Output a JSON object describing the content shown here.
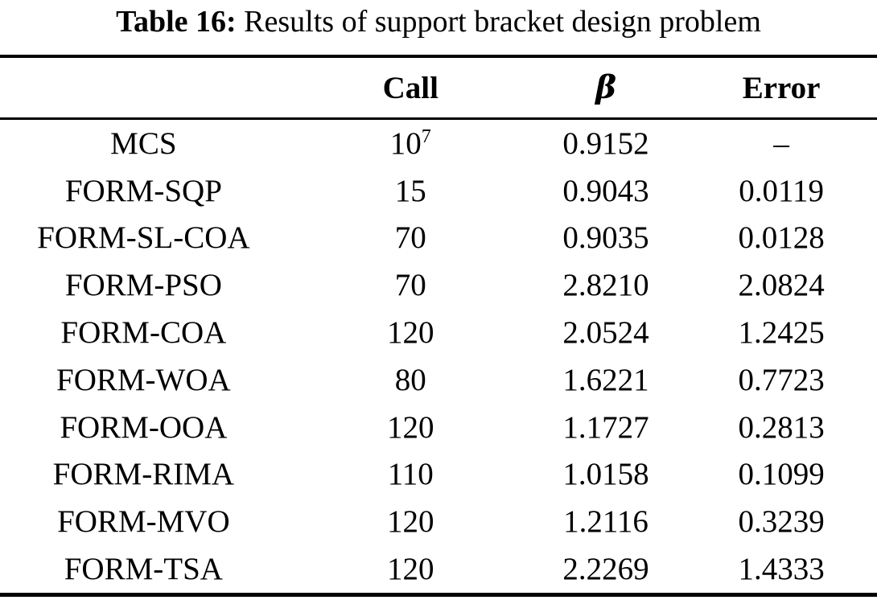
{
  "caption": {
    "label": "Table 16:",
    "text": "Results of support bracket design problem"
  },
  "table": {
    "headers": {
      "method": "",
      "call": "Call",
      "beta": "β",
      "error": "Error"
    },
    "rows": [
      {
        "method": "MCS",
        "call": "10",
        "call_sup": "7",
        "beta": "0.9152",
        "error": "–"
      },
      {
        "method": "FORM-SQP",
        "call": "15",
        "beta": "0.9043",
        "error": "0.0119"
      },
      {
        "method": "FORM-SL-COA",
        "call": "70",
        "beta": "0.9035",
        "error": "0.0128"
      },
      {
        "method": "FORM-PSO",
        "call": "70",
        "beta": "2.8210",
        "error": "2.0824"
      },
      {
        "method": "FORM-COA",
        "call": "120",
        "beta": "2.0524",
        "error": "1.2425"
      },
      {
        "method": "FORM-WOA",
        "call": "80",
        "beta": "1.6221",
        "error": "0.7723"
      },
      {
        "method": "FORM-OOA",
        "call": "120",
        "beta": "1.1727",
        "error": "0.2813"
      },
      {
        "method": "FORM-RIMA",
        "call": "110",
        "beta": "1.0158",
        "error": "0.1099"
      },
      {
        "method": "FORM-MVO",
        "call": "120",
        "beta": "1.2116",
        "error": "0.3239"
      },
      {
        "method": "FORM-TSA",
        "call": "120",
        "beta": "2.2269",
        "error": "1.4333"
      }
    ]
  }
}
